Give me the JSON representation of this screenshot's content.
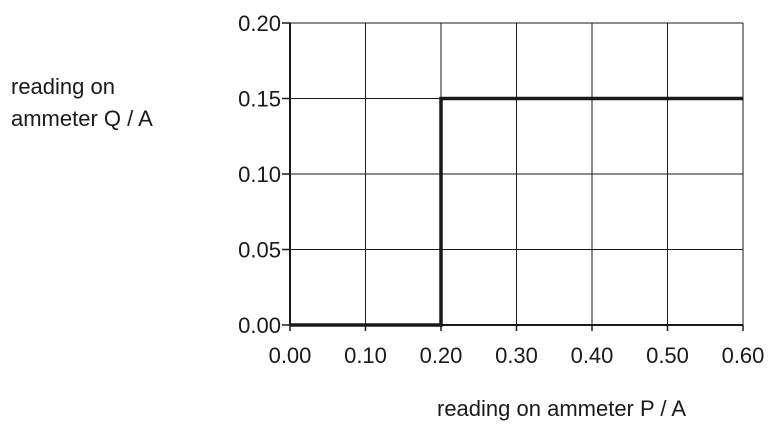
{
  "chart_data": {
    "type": "line",
    "title": "",
    "ylabel_lines": [
      "reading on",
      "ammeter Q / A"
    ],
    "xlabel": "reading on ammeter P / A",
    "xlim": [
      0.0,
      0.6
    ],
    "ylim": [
      0.0,
      0.2
    ],
    "x_ticks": [
      "0.00",
      "0.10",
      "0.20",
      "0.30",
      "0.40",
      "0.50",
      "0.60"
    ],
    "y_ticks": [
      "0.00",
      "0.05",
      "0.10",
      "0.15",
      "0.20"
    ],
    "grid": true,
    "series": [
      {
        "x": [
          0.0,
          0.2,
          0.2,
          0.6
        ],
        "y": [
          0.0,
          0.0,
          0.15,
          0.15
        ]
      }
    ]
  }
}
